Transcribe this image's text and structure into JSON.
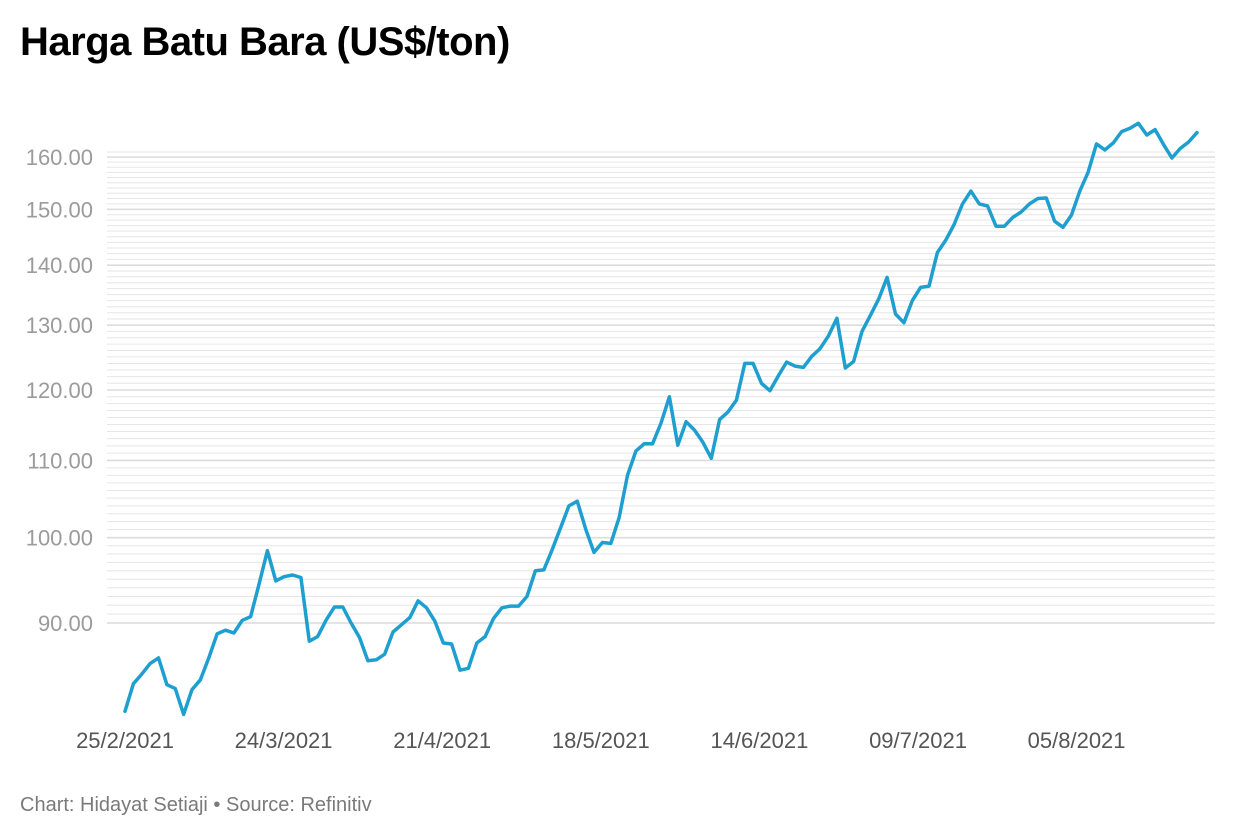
{
  "title": "Harga Batu Bara (US$/ton)",
  "footer": "Chart: Hidayat Setiaji • Source: Refinitiv",
  "colors": {
    "line": "#1e9fd0",
    "grid": "#e6e6e6",
    "ytick": "#9b9b9b",
    "xtick": "#555555"
  },
  "chart_data": {
    "type": "line",
    "title": "Harga Batu Bara (US$/ton)",
    "xlabel": "",
    "ylabel": "",
    "y_scale": "log",
    "ylim": [
      80,
      167
    ],
    "grid": true,
    "y_ticks": [
      "160.00",
      "150.00",
      "140.00",
      "130.00",
      "120.00",
      "110.00",
      "100.00",
      "90.00"
    ],
    "x_ticks": [
      "25/2/2021",
      "24/3/2021",
      "21/4/2021",
      "18/5/2021",
      "14/6/2021",
      "09/7/2021",
      "05/8/2021"
    ],
    "series": [
      {
        "values": [
          80.7,
          83.5,
          84.5,
          85.6,
          86.2,
          83.4,
          83.0,
          80.4,
          82.9,
          83.9,
          86.2,
          88.8,
          89.2,
          88.9,
          90.3,
          90.7,
          94.4,
          98.4,
          94.8,
          95.3,
          95.5,
          95.2,
          88.0,
          88.5,
          90.3,
          91.8,
          91.8,
          90.0,
          88.4,
          85.9,
          86.0,
          86.6,
          89.0,
          89.8,
          90.6,
          92.5,
          91.7,
          90.2,
          87.8,
          87.7,
          84.9,
          85.1,
          87.8,
          88.5,
          90.5,
          91.7,
          91.9,
          91.9,
          93.0,
          96.0,
          96.1,
          98.5,
          101.2,
          104.0,
          104.6,
          101.1,
          98.2,
          99.4,
          99.3,
          102.5,
          108.0,
          111.3,
          112.3,
          112.3,
          115.2,
          119.0,
          112.1,
          115.4,
          114.2,
          112.5,
          110.3,
          115.7,
          116.8,
          118.5,
          124.0,
          124.0,
          121.0,
          119.9,
          122.1,
          124.2,
          123.6,
          123.4,
          125.1,
          126.3,
          128.3,
          131.1,
          123.3,
          124.3,
          129.0,
          131.6,
          134.3,
          137.9,
          131.8,
          130.4,
          134.0,
          136.2,
          136.4,
          142.2,
          144.4,
          147.2,
          151.0,
          153.4,
          151.0,
          150.6,
          146.9,
          146.9,
          148.5,
          149.5,
          151.0,
          152.0,
          152.1,
          147.8,
          146.7,
          148.9,
          153.4,
          157.0,
          162.6,
          161.4,
          162.8,
          165.1,
          165.8,
          166.8,
          164.4,
          165.5,
          162.5,
          159.8,
          161.7,
          163.0,
          164.9
        ]
      }
    ]
  }
}
